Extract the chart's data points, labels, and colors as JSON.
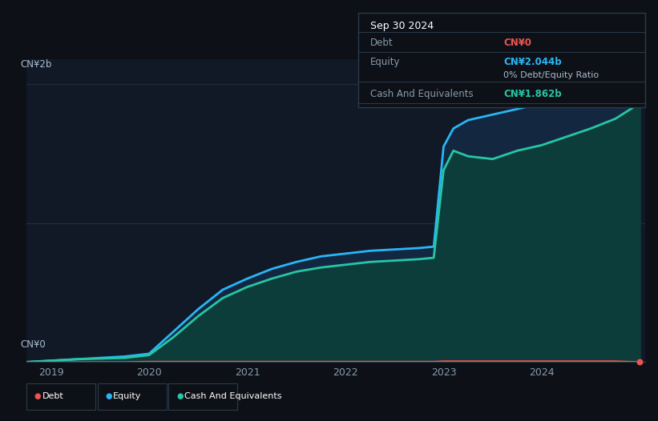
{
  "background_color": "#0d1117",
  "plot_bg_color": "#111927",
  "ylabel_top": "CN¥2b",
  "ylabel_bottom": "CN¥0",
  "x_ticks": [
    "2019",
    "2020",
    "2021",
    "2022",
    "2023",
    "2024"
  ],
  "equity_color": "#29b6f6",
  "cash_color": "#26c6a6",
  "debt_color": "#ef5350",
  "equity_fill": "#132840",
  "cash_fill": "#0d3d3a",
  "grid_color": "#1e2d3d",
  "tooltip_bg": "#0d1117",
  "tooltip_border": "#2a3a4a",
  "years": [
    2018.75,
    2019.0,
    2019.25,
    2019.5,
    2019.75,
    2020.0,
    2020.25,
    2020.5,
    2020.75,
    2021.0,
    2021.25,
    2021.5,
    2021.75,
    2022.0,
    2022.25,
    2022.5,
    2022.75,
    2022.9,
    2023.0,
    2023.1,
    2023.25,
    2023.5,
    2023.75,
    2024.0,
    2024.25,
    2024.5,
    2024.75,
    2025.0
  ],
  "equity": [
    0.0,
    0.01,
    0.02,
    0.03,
    0.04,
    0.06,
    0.22,
    0.38,
    0.52,
    0.6,
    0.67,
    0.72,
    0.76,
    0.78,
    0.8,
    0.81,
    0.82,
    0.83,
    1.55,
    1.68,
    1.74,
    1.78,
    1.82,
    1.86,
    1.9,
    1.95,
    2.02,
    2.044
  ],
  "cash": [
    0.0,
    0.01,
    0.02,
    0.025,
    0.03,
    0.05,
    0.18,
    0.33,
    0.46,
    0.54,
    0.6,
    0.65,
    0.68,
    0.7,
    0.72,
    0.73,
    0.74,
    0.75,
    1.38,
    1.52,
    1.48,
    1.46,
    1.52,
    1.56,
    1.62,
    1.68,
    1.75,
    1.862
  ],
  "debt": [
    0.0,
    0.0,
    0.0,
    0.0,
    0.0,
    0.003,
    0.003,
    0.003,
    0.003,
    0.003,
    0.003,
    0.003,
    0.003,
    0.003,
    0.003,
    0.003,
    0.003,
    0.003,
    0.006,
    0.006,
    0.006,
    0.006,
    0.006,
    0.006,
    0.006,
    0.006,
    0.006,
    0.0
  ],
  "tooltip_date": "Sep 30 2024",
  "tooltip_debt_label": "Debt",
  "tooltip_debt_value": "CN¥0",
  "tooltip_equity_label": "Equity",
  "tooltip_equity_value": "CN¥2.044b",
  "tooltip_ratio": "0% Debt/Equity Ratio",
  "tooltip_cash_label": "Cash And Equivalents",
  "tooltip_cash_value": "CN¥1.862b",
  "legend_debt": "Debt",
  "legend_equity": "Equity",
  "legend_cash": "Cash And Equivalents"
}
